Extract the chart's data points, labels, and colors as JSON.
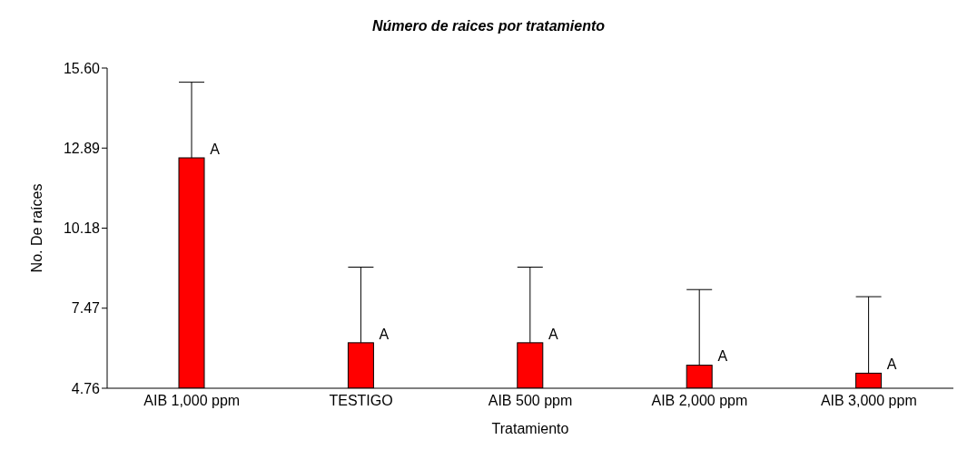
{
  "chart_data": {
    "type": "bar",
    "title": "Número de raices por tratamiento",
    "xlabel": "Tratamiento",
    "ylabel": "No. De raíces",
    "categories": [
      "AIB 1,000 ppm",
      "TESTIGO",
      "AIB 500 ppm",
      "AIB 2,000 ppm",
      "AIB 3,000 ppm"
    ],
    "values": [
      12.56,
      6.3,
      6.3,
      5.54,
      5.27
    ],
    "errors": [
      [
        12.56,
        15.12
      ],
      [
        6.3,
        8.86
      ],
      [
        6.3,
        8.86
      ],
      [
        5.54,
        8.1
      ],
      [
        5.27,
        7.86
      ]
    ],
    "color": "#ff0000",
    "ylim": [
      4.76,
      15.6
    ],
    "yticks": [
      4.76,
      7.47,
      10.18,
      12.89,
      {
        "value": 15.6,
        "label": "15.60"
      }
    ],
    "grid": false,
    "legend": false,
    "annotations": [
      {
        "text": "A",
        "x": "AIB 1,000 ppm",
        "y": 12.56
      },
      {
        "text": "A",
        "x": "TESTIGO",
        "y": 6.3
      },
      {
        "text": "A",
        "x": "AIB 500 ppm",
        "y": 6.3
      },
      {
        "text": "A",
        "x": "AIB 2,000 ppm",
        "y": 5.54
      },
      {
        "text": "A",
        "x": "AIB 3,000 ppm",
        "y": 5.27
      }
    ]
  }
}
